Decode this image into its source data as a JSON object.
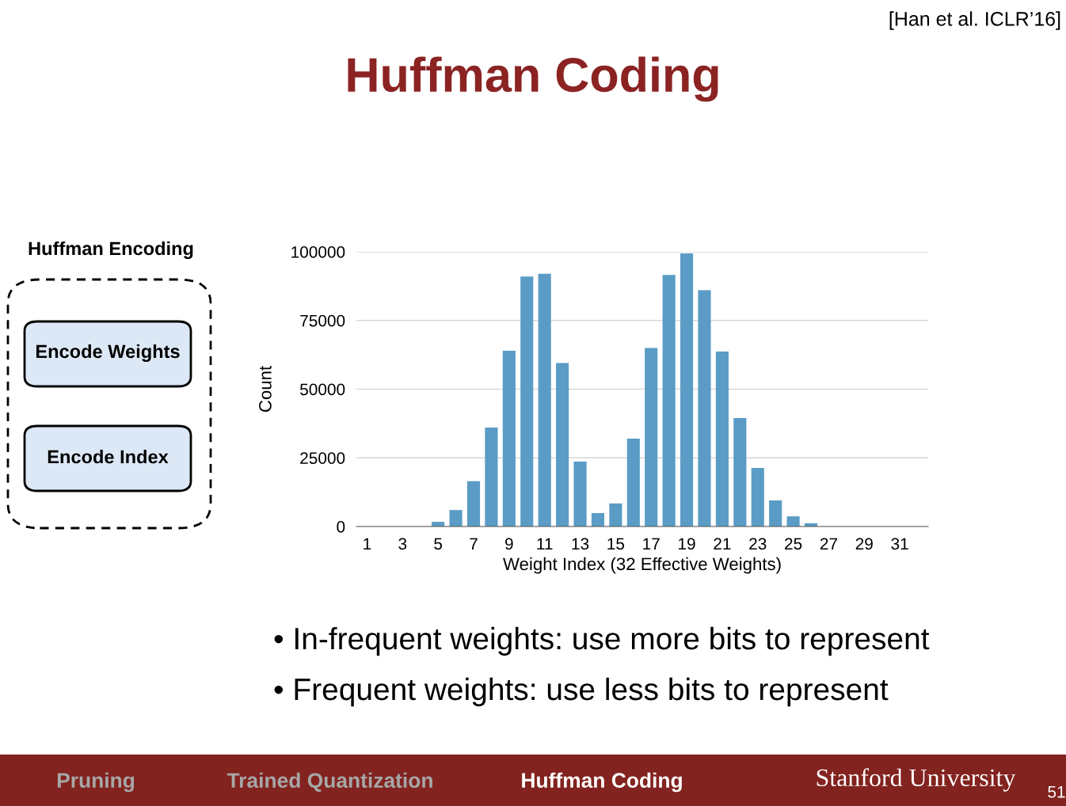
{
  "chart_data": {
    "type": "bar",
    "title": "Huffman Coding",
    "xlabel": "Weight Index (32 Effective Weights)",
    "ylabel": "Count",
    "categories": [
      "1",
      null,
      "3",
      null,
      "5",
      null,
      "7",
      null,
      "9",
      null,
      "11",
      null,
      "13",
      null,
      "15",
      null,
      "17",
      null,
      "19",
      null,
      "21",
      null,
      "23",
      null,
      "25",
      null,
      "27",
      null,
      "29",
      null,
      "31",
      null
    ],
    "values": [
      0,
      0,
      0,
      0,
      1700,
      6000,
      16500,
      36000,
      64000,
      91000,
      92000,
      59500,
      23600,
      4900,
      8400,
      32000,
      65000,
      91600,
      99400,
      86000,
      63700,
      39500,
      21300,
      9500,
      3700,
      1200,
      0,
      0,
      0,
      0,
      0,
      0
    ],
    "color": "#5a9cc5",
    "ylim": [
      0,
      100000
    ],
    "yticks": [
      0,
      25000,
      50000,
      75000,
      100000
    ],
    "grid": "y",
    "annotations": [
      "[Han et al. ICLR’16]",
      "Huffman Encoding",
      "Encode Weights",
      "Encode Index",
      "• In-frequent weights: use more bits to represent",
      "• Frequent weights: use less bits to represent",
      "Pruning",
      "Trained Quantization",
      "Huffman Coding",
      "Stanford University",
      "51"
    ]
  }
}
